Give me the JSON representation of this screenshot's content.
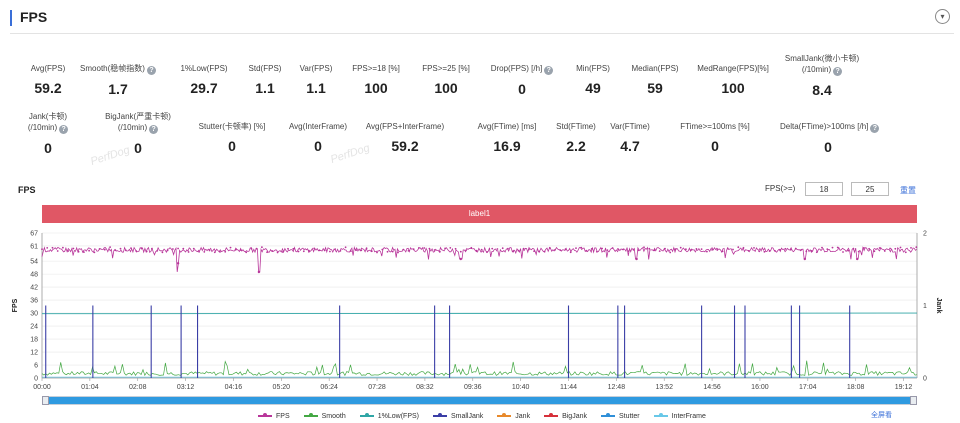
{
  "header": {
    "title": "FPS"
  },
  "metrics": [
    {
      "label": "Avg(FPS)",
      "value": "59.2",
      "help": false
    },
    {
      "label": "Smooth(稳帧指数)",
      "value": "1.7",
      "help": true
    },
    {
      "label": "1%Low(FPS)",
      "value": "29.7",
      "help": false
    },
    {
      "label": "Std(FPS)",
      "value": "1.1",
      "help": false
    },
    {
      "label": "Var(FPS)",
      "value": "1.1",
      "help": false
    },
    {
      "label": "FPS>=18 [%]",
      "value": "100",
      "help": false
    },
    {
      "label": "FPS>=25 [%]",
      "value": "100",
      "help": false
    },
    {
      "label": "Drop(FPS) [/h]",
      "value": "0",
      "help": true
    },
    {
      "label": "Min(FPS)",
      "value": "49",
      "help": false
    },
    {
      "label": "Median(FPS)",
      "value": "59",
      "help": false
    },
    {
      "label": "MedRange(FPS)[%]",
      "value": "100",
      "help": false
    },
    {
      "label": "SmallJank(微小卡顿)",
      "label2": "(/10min)",
      "value": "8.4",
      "help": true
    },
    {
      "label": "Jank(卡顿)",
      "label2": "(/10min)",
      "value": "0",
      "help": true
    },
    {
      "label": "BigJank(严重卡顿)",
      "label2": "(/10min)",
      "value": "0",
      "help": true
    },
    {
      "label": "Stutter(卡顿率) [%]",
      "value": "0",
      "help": false
    },
    {
      "label": "Avg(InterFrame)",
      "value": "0",
      "help": false
    },
    {
      "label": "Avg(FPS+InterFrame)",
      "value": "59.2",
      "help": false
    },
    {
      "label": "Avg(FTime) [ms]",
      "value": "16.9",
      "help": false
    },
    {
      "label": "Std(FTime)",
      "value": "2.2",
      "help": false
    },
    {
      "label": "Var(FTime)",
      "value": "4.7",
      "help": false
    },
    {
      "label": "FTime>=100ms [%]",
      "value": "0",
      "help": false
    },
    {
      "label": "Delta(FTime)>100ms [/h]",
      "value": "0",
      "help": true
    }
  ],
  "watermark": "PerfDog",
  "chart_header": {
    "title": "FPS",
    "threshold_label": "FPS(>=)",
    "threshold_1": "18",
    "threshold_2": "25",
    "reset_link": "重置",
    "fullscreen_link": "全屏看"
  },
  "label_bar": "label1",
  "colors": {
    "FPS": "#b8369a",
    "Smooth": "#43a843",
    "1%Low(FPS)": "#2fa6a6",
    "SmallJank": "#3a3ea6",
    "Jank": "#e8892b",
    "BigJank": "#d6303a",
    "Stutter": "#2f8fd8",
    "InterFrame": "#68c8e8"
  },
  "chart_data": {
    "type": "line",
    "ylabel_left": "FPS",
    "ylabel_right": "Jank",
    "y_ticks_left": [
      "0",
      "6",
      "12",
      "18",
      "24",
      "30",
      "36",
      "42",
      "48",
      "54",
      "61",
      "67"
    ],
    "y_ticks_right": [
      "0",
      "1",
      "2"
    ],
    "ylim_left": [
      0,
      67
    ],
    "ylim_right": [
      0,
      2
    ],
    "x_ticks": [
      "00:00",
      "01:04",
      "02:08",
      "03:12",
      "04:16",
      "05:20",
      "06:24",
      "07:28",
      "08:32",
      "09:36",
      "10:40",
      "11:44",
      "12:48",
      "13:52",
      "14:56",
      "16:00",
      "17:04",
      "18:08",
      "19:12"
    ],
    "duration_s": 1170,
    "fps_avg": 59.2,
    "fps_dips": [
      {
        "t_s": 182,
        "fps": 53
      },
      {
        "t_s": 290,
        "fps": 49
      },
      {
        "t_s": 560,
        "fps": 55
      },
      {
        "t_s": 795,
        "fps": 55
      },
      {
        "t_s": 1020,
        "fps": 55
      },
      {
        "t_s": 1090,
        "fps": 55
      }
    ],
    "low1_start": 29.7,
    "low1_end": 30,
    "smalljank_times_s": [
      5,
      68,
      146,
      186,
      208,
      398,
      525,
      545,
      704,
      770,
      779,
      882,
      926,
      940,
      1002,
      1013,
      1080
    ],
    "smalljank_value": 1,
    "series": [
      {
        "name": "FPS"
      },
      {
        "name": "Smooth"
      },
      {
        "name": "1%Low(FPS)"
      },
      {
        "name": "SmallJank"
      },
      {
        "name": "Jank"
      },
      {
        "name": "BigJank"
      },
      {
        "name": "Stutter"
      },
      {
        "name": "InterFrame"
      }
    ]
  }
}
